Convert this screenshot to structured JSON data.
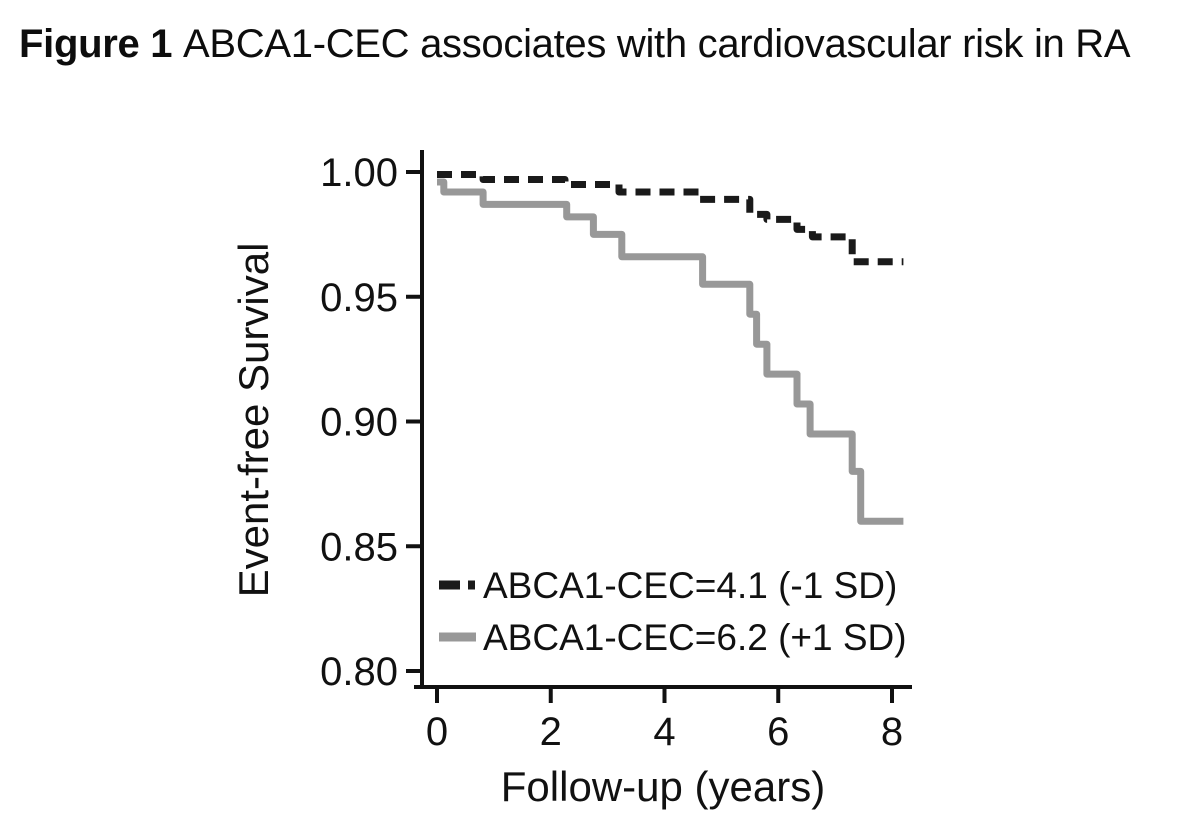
{
  "figure": {
    "label": "Figure 1",
    "title_rest": "ABCA1-CEC associates with cardiovascular risk in RA"
  },
  "colors": {
    "axis": "#111111",
    "background": "#ffffff",
    "series_low": "#1a1a1a",
    "series_high": "#989898"
  },
  "chart_data": {
    "type": "line",
    "subtype": "kaplan-meier-step",
    "title": "Figure 1 ABCA1-CEC associates with cardiovascular risk in RA",
    "xlabel": "Follow-up (years)",
    "ylabel": "Event-free Survival",
    "xlim": [
      0,
      8.2
    ],
    "ylim": [
      0.8,
      1.0
    ],
    "xticks": [
      "0",
      "2",
      "4",
      "6",
      "8"
    ],
    "yticks": [
      "1.00",
      "0.95",
      "0.90",
      "0.85",
      "0.80"
    ],
    "grid": false,
    "legend_position": "inside-bottom-left",
    "points_format": "[follow-up years, event-free survival] value after each step drop",
    "series": [
      {
        "name": "ABCA1-CEC=4.1 (-1 SD)",
        "line_style": "dashed",
        "color": "#1a1a1a",
        "points": [
          [
            0,
            0.999
          ],
          [
            0.81,
            0.997
          ],
          [
            2.25,
            0.995
          ],
          [
            3.2,
            0.992
          ],
          [
            4.6,
            0.989
          ],
          [
            5.5,
            0.983
          ],
          [
            5.8,
            0.981
          ],
          [
            6.33,
            0.977
          ],
          [
            6.6,
            0.974
          ],
          [
            7.3,
            0.964
          ],
          [
            8.2,
            0.964
          ]
        ]
      },
      {
        "name": "ABCA1-CEC=6.2 (+1 SD)",
        "line_style": "solid",
        "color": "#989898",
        "points": [
          [
            0,
            0.996
          ],
          [
            0.12,
            0.992
          ],
          [
            0.81,
            0.987
          ],
          [
            2.28,
            0.982
          ],
          [
            2.75,
            0.975
          ],
          [
            3.25,
            0.966
          ],
          [
            4.67,
            0.955
          ],
          [
            5.5,
            0.943
          ],
          [
            5.62,
            0.931
          ],
          [
            5.8,
            0.919
          ],
          [
            6.33,
            0.907
          ],
          [
            6.56,
            0.895
          ],
          [
            7.3,
            0.88
          ],
          [
            7.45,
            0.86
          ],
          [
            8.2,
            0.86
          ]
        ]
      }
    ]
  }
}
